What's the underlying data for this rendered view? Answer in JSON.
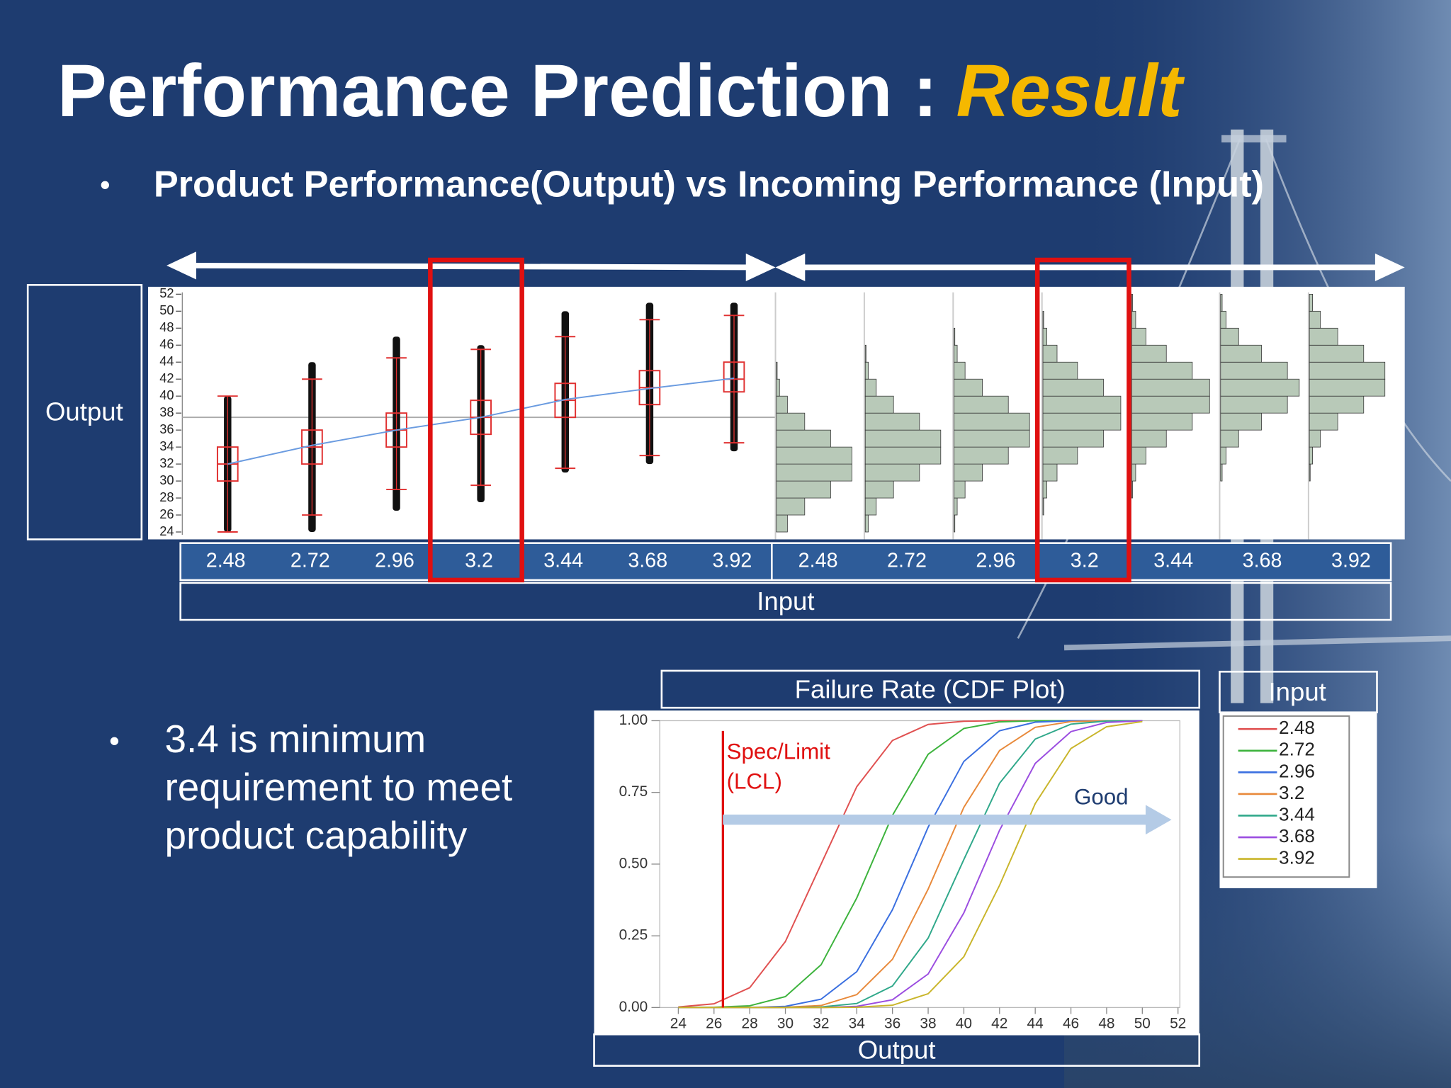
{
  "title": "Performance Prediction :",
  "title_highlight": "Result",
  "bullet_1": "Product Performance(Output) vs Incoming Performance (Input)",
  "bullet_2": [
    "3.4 is minimum",
    "requirement to meet",
    "product capability"
  ],
  "chart_data": [
    {
      "type": "box",
      "ylabel": "Output",
      "xlabel": "Input",
      "categories": [
        "2.48",
        "2.72",
        "2.96",
        "3.2",
        "3.44",
        "3.68",
        "3.92"
      ],
      "low": [
        24,
        26,
        29,
        29.5,
        31.5,
        33,
        34.5
      ],
      "q1": [
        30,
        32,
        34,
        35.5,
        37.5,
        39,
        40.5
      ],
      "median": [
        32,
        34,
        36,
        37.5,
        39.5,
        41,
        42
      ],
      "q3": [
        34,
        36,
        38,
        39.5,
        41.5,
        43,
        44
      ],
      "high": [
        40,
        42,
        44.5,
        45.5,
        47,
        49,
        49.5
      ],
      "range_low": [
        24,
        24,
        26.5,
        27.5,
        31,
        32,
        33.5
      ],
      "range_high": [
        40,
        44,
        47,
        46,
        50,
        51,
        51
      ],
      "mean": [
        32,
        34.2,
        36,
        37.5,
        39.6,
        40.9,
        42.1
      ],
      "reference_line": 37.5,
      "ylim": [
        24,
        52
      ],
      "yticks": [
        24,
        26,
        28,
        30,
        32,
        34,
        36,
        38,
        40,
        42,
        44,
        46,
        48,
        50,
        52
      ],
      "color": "#e03030",
      "mean_color": "#6a9be0"
    },
    {
      "type": "histogram",
      "orientation": "horizontal",
      "categories": [
        "2.48",
        "2.72",
        "2.96",
        "3.2",
        "3.44",
        "3.68",
        "3.92"
      ],
      "bins": [
        24,
        26,
        28,
        30,
        32,
        34,
        36,
        38,
        40,
        42,
        44,
        46,
        48,
        50,
        52
      ],
      "counts": [
        [
          14,
          36,
          69,
          96,
          96,
          69,
          36,
          14,
          4,
          1,
          0,
          0,
          0,
          0
        ],
        [
          4,
          14,
          36,
          69,
          96,
          96,
          69,
          36,
          14,
          4,
          1,
          0,
          0,
          0
        ],
        [
          1,
          4,
          14,
          36,
          69,
          96,
          96,
          69,
          36,
          14,
          4,
          1,
          0,
          0
        ],
        [
          0,
          1,
          5,
          18,
          44,
          77,
          99,
          99,
          77,
          44,
          18,
          5,
          1,
          0
        ],
        [
          0,
          0,
          1,
          5,
          18,
          44,
          77,
          99,
          99,
          77,
          44,
          18,
          5,
          1
        ],
        [
          0,
          0,
          0,
          2,
          7,
          23,
          52,
          85,
          100,
          85,
          52,
          23,
          7,
          2
        ],
        [
          0,
          0,
          0,
          1,
          4,
          14,
          36,
          69,
          96,
          96,
          69,
          36,
          14,
          4
        ]
      ],
      "ylim": [
        24,
        52
      ],
      "color": "#b8c9b8"
    },
    {
      "type": "line",
      "title": "Failure Rate (CDF Plot)",
      "xlabel": "Output",
      "legend_title": "Input",
      "x": [
        24,
        26,
        28,
        30,
        32,
        34,
        36,
        38,
        40,
        42,
        44,
        46,
        48,
        50
      ],
      "series": [
        {
          "name": "2.48",
          "color": "#e05050",
          "values": [
            0.002,
            0.013,
            0.069,
            0.23,
            0.5,
            0.77,
            0.931,
            0.987,
            0.998,
            1,
            1,
            1,
            1,
            1
          ]
        },
        {
          "name": "2.72",
          "color": "#3cb33c",
          "values": [
            0,
            0.001,
            0.006,
            0.038,
            0.149,
            0.382,
            0.67,
            0.883,
            0.973,
            0.996,
            1,
            1,
            1,
            1
          ]
        },
        {
          "name": "2.96",
          "color": "#3a6fe0",
          "values": [
            0,
            0,
            0,
            0.004,
            0.029,
            0.125,
            0.341,
            0.629,
            0.858,
            0.965,
            0.995,
            1,
            1,
            1
          ]
        },
        {
          "name": "3.2",
          "color": "#e8893a",
          "values": [
            0,
            0,
            0,
            0.001,
            0.007,
            0.045,
            0.168,
            0.413,
            0.698,
            0.896,
            0.977,
            0.997,
            1,
            1
          ]
        },
        {
          "name": "3.44",
          "color": "#2fa88a",
          "values": [
            0,
            0,
            0,
            0,
            0.002,
            0.014,
            0.075,
            0.242,
            0.516,
            0.782,
            0.936,
            0.988,
            0.999,
            1
          ]
        },
        {
          "name": "3.68",
          "color": "#9b4de0",
          "values": [
            0,
            0,
            0,
            0,
            0,
            0.004,
            0.027,
            0.117,
            0.33,
            0.618,
            0.851,
            0.962,
            0.994,
            1
          ]
        },
        {
          "name": "3.92",
          "color": "#c9b52a",
          "values": [
            0,
            0,
            0,
            0,
            0,
            0.001,
            0.008,
            0.048,
            0.177,
            0.426,
            0.711,
            0.903,
            0.979,
            0.997
          ]
        }
      ],
      "xlim": [
        24,
        52
      ],
      "xticks": [
        24,
        26,
        28,
        30,
        32,
        34,
        36,
        38,
        40,
        42,
        44,
        46,
        48,
        50,
        52
      ],
      "ylim": [
        0,
        1
      ],
      "yticks": [
        {
          "value": 0,
          "label": "0.00"
        },
        0.25,
        {
          "value": 0.5,
          "label": "0.50"
        },
        0.75,
        {
          "value": 1,
          "label": "1.00"
        }
      ],
      "spec_limit": 26.5,
      "spec_color": "#e01010",
      "annotations": [
        "Spec/Limit",
        "(LCL)",
        "Good"
      ]
    }
  ]
}
